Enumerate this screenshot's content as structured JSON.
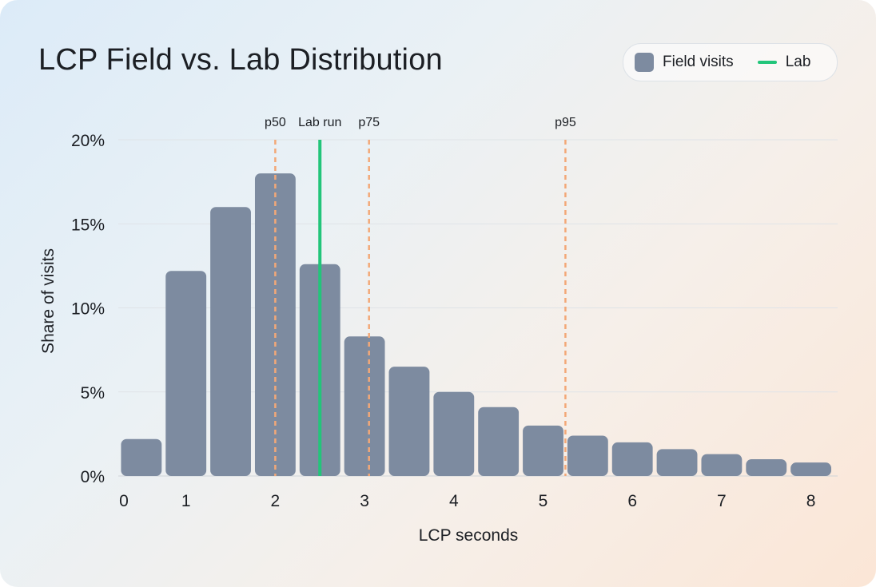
{
  "chart_data": {
    "type": "bar",
    "title": "LCP Field vs. Lab Distribution",
    "xlabel": "LCP seconds",
    "ylabel": "Share of visits",
    "x": [
      0.5,
      1.0,
      1.5,
      2.0,
      2.5,
      3.0,
      3.5,
      4.0,
      4.5,
      5.0,
      5.5,
      6.0,
      6.5,
      7.0,
      7.5,
      8.0
    ],
    "series": [
      {
        "name": "Field visits",
        "values": [
          2.2,
          12.2,
          16.0,
          18.0,
          12.6,
          8.3,
          6.5,
          5.0,
          4.1,
          3.0,
          2.4,
          2.0,
          1.6,
          1.3,
          1.0,
          0.8
        ],
        "color": "#7d8ba0"
      }
    ],
    "xlim": [
      0.25,
      8.25
    ],
    "ylim": [
      0,
      20
    ],
    "xticks": [
      0,
      1,
      2,
      3,
      4,
      5,
      6,
      7,
      8
    ],
    "yticks": [
      0,
      5,
      10,
      15,
      20
    ],
    "ytick_labels": [
      "0%",
      "5%",
      "10%",
      "15%",
      "20%"
    ],
    "grid": "horizontal",
    "legend": {
      "position": "top-right",
      "entries": [
        "Field visits",
        "Lab"
      ]
    },
    "reference_lines": [
      {
        "label": "p50",
        "x": 2.0,
        "style": "dashed",
        "color": "#f3a877"
      },
      {
        "label": "Lab run",
        "x": 2.5,
        "style": "solid",
        "color": "#22c57a"
      },
      {
        "label": "p75",
        "x": 3.05,
        "style": "dashed",
        "color": "#f3a877"
      },
      {
        "label": "p95",
        "x": 5.25,
        "style": "dashed",
        "color": "#f3a877"
      }
    ]
  }
}
